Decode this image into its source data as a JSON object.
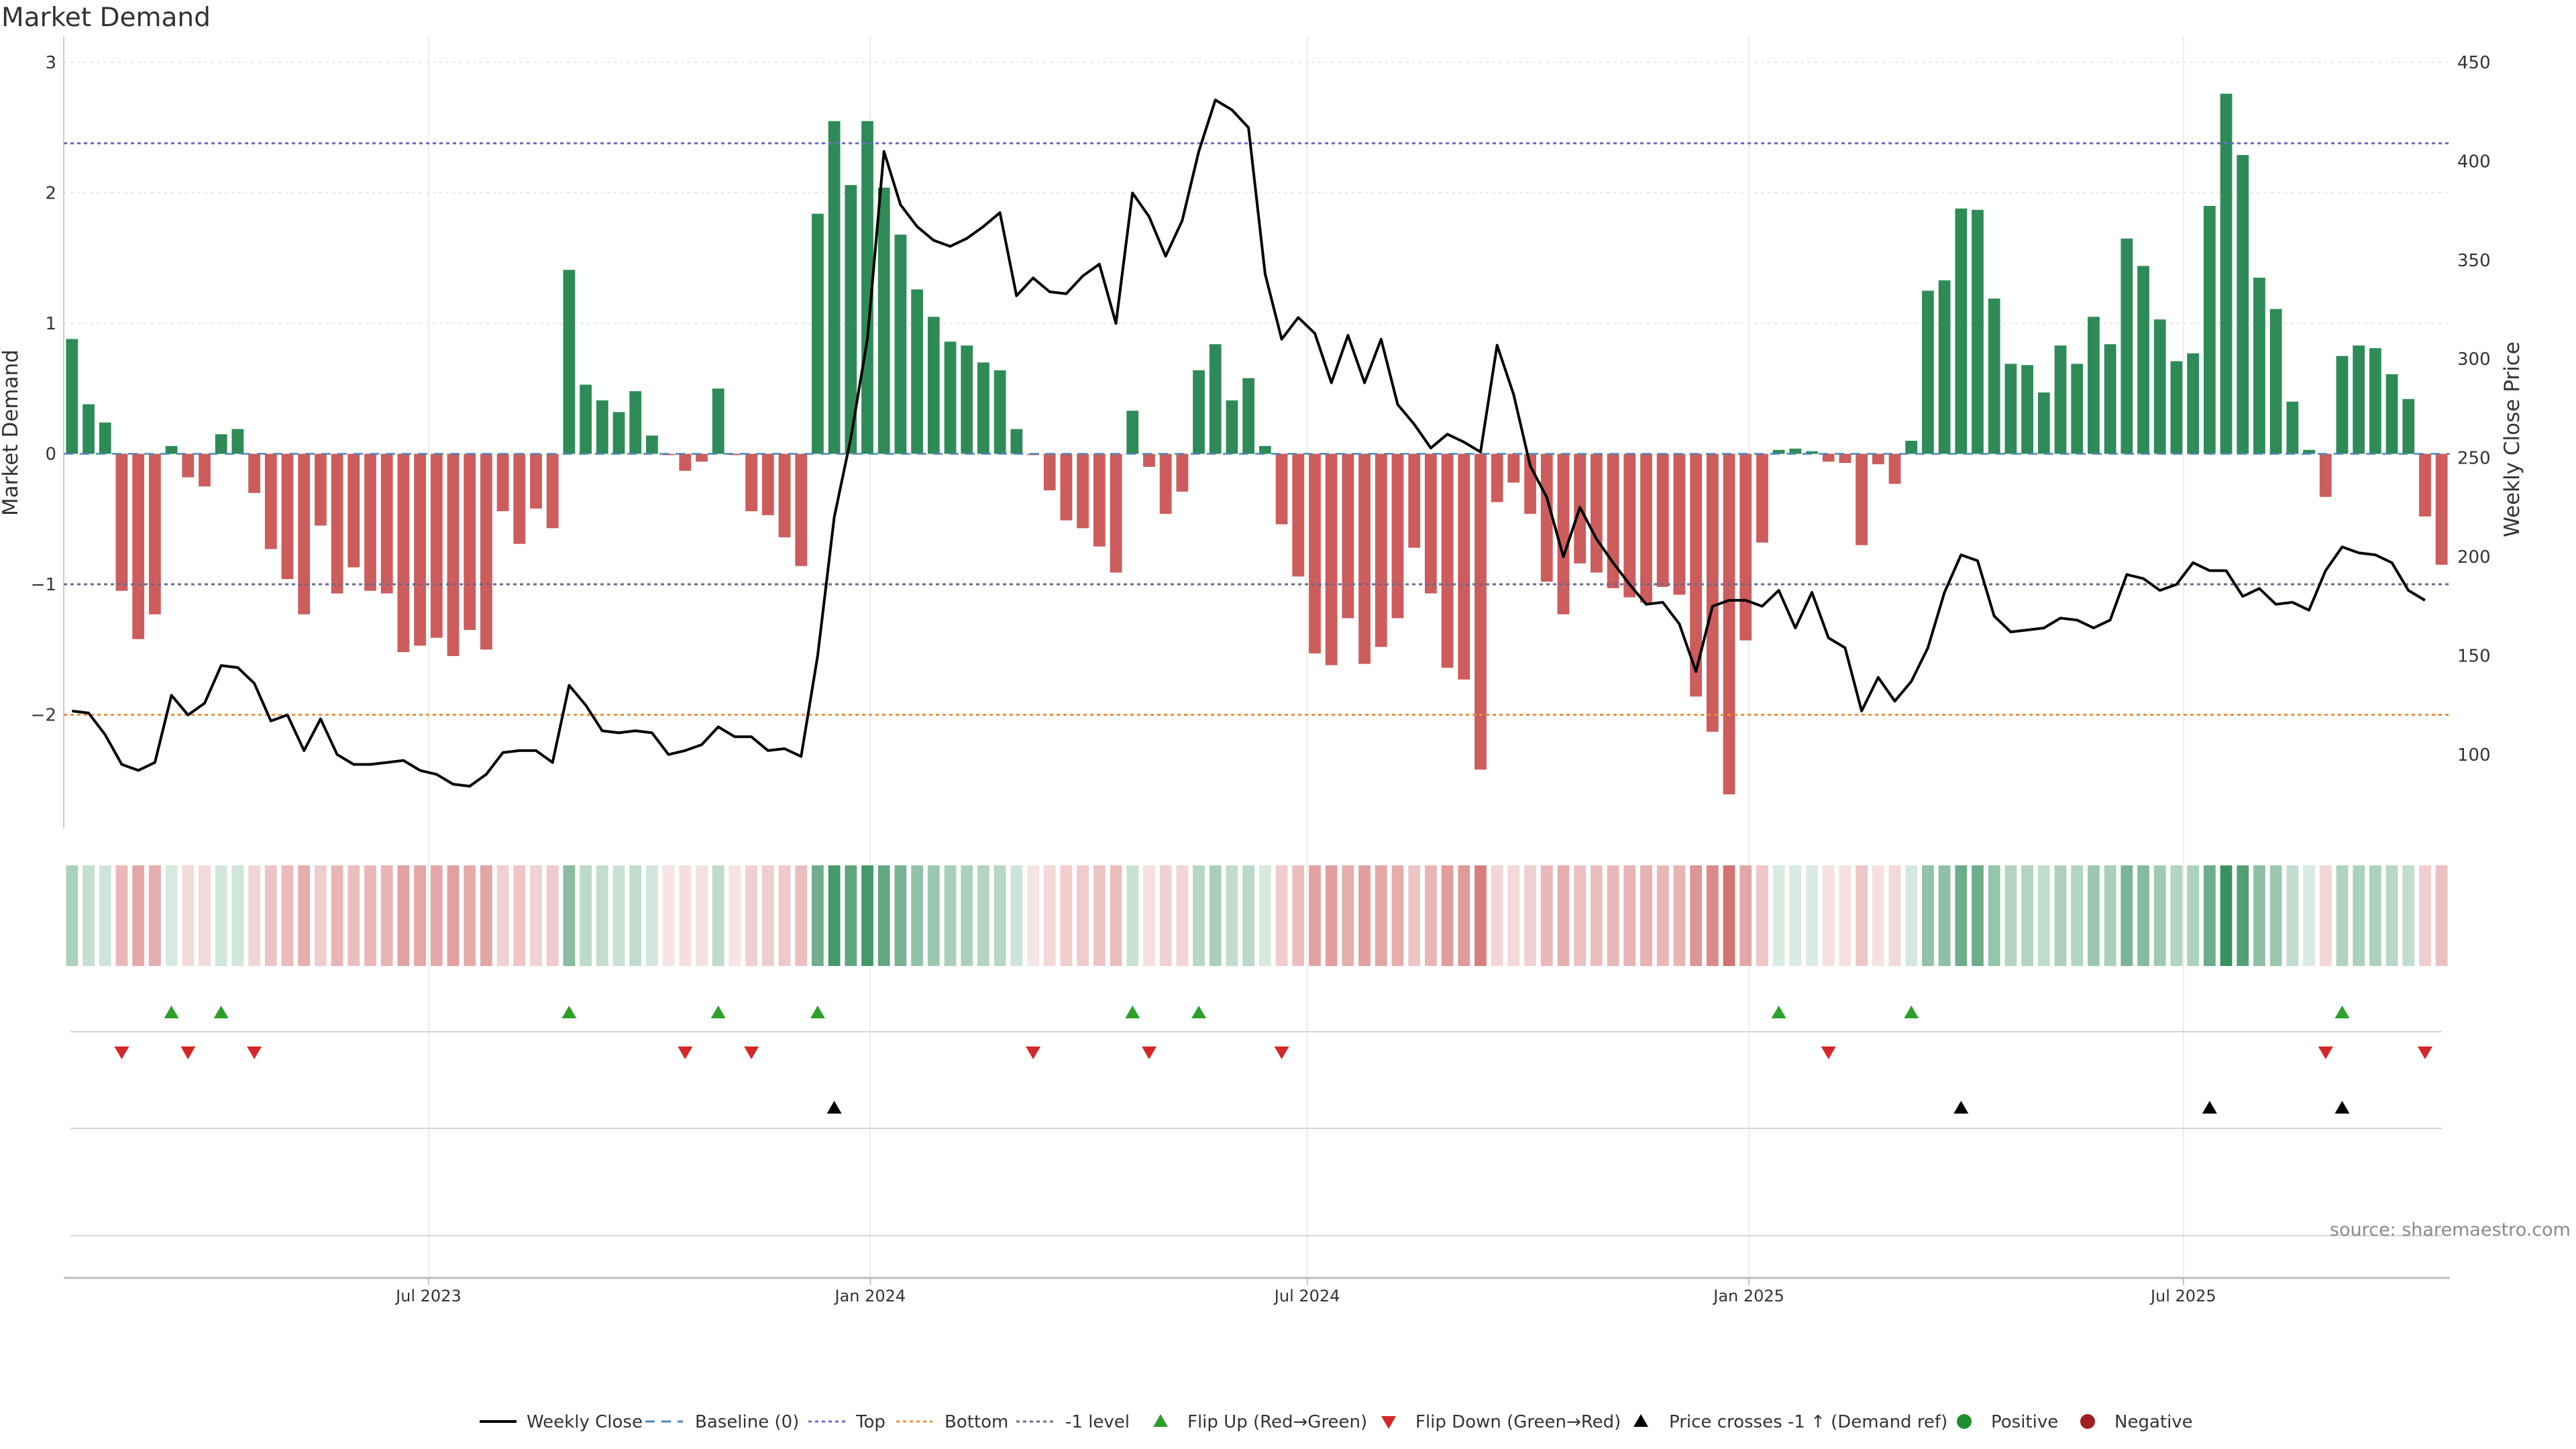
{
  "title": "Market Demand",
  "source": "source: sharemaestro.com",
  "legend": {
    "weekly_close": "Weekly Close",
    "baseline": "Baseline (0)",
    "top": "Top",
    "bottom": "Bottom",
    "minus1": "-1 level",
    "flip_up": "Flip Up (Red→Green)",
    "flip_down": "Flip Down (Green→Red)",
    "price_cross": "Price crosses -1 ↑ (Demand ref)",
    "positive": "Positive",
    "negative": "Negative"
  },
  "colors": {
    "positive": "#2e8b57",
    "negative": "#cd5c5c",
    "price": "#000000",
    "top": "#6a6ad0",
    "bottom": "#e8923a",
    "minus1": "#6a6a8a",
    "baseline": "#4a86b8",
    "flip_up": "#2ca02c",
    "flip_down": "#d62728",
    "cross": "#000000",
    "positive_dot": "#1e8f2e",
    "negative_dot": "#a01e1e"
  },
  "chart_data": {
    "type": "bar",
    "title": "Market Demand",
    "ylabel": "Market Demand",
    "ylabel_right": "Weekly Close Price",
    "ylim": [
      -2.8,
      3.0
    ],
    "ylim_right": [
      60,
      450
    ],
    "yticks": [
      -2,
      -1,
      0,
      1,
      2,
      3
    ],
    "yticks_right": [
      100,
      150,
      200,
      250,
      300,
      350,
      400,
      450
    ],
    "top_level": 2.38,
    "bottom_level": -2.0,
    "minus1_level": -1.0,
    "x_start": "2023-01-30",
    "x_end": "2025-10-20",
    "xtick_labels": [
      "Jul 2023",
      "Jan 2024",
      "Jul 2024",
      "Jan 2025",
      "Jul 2025"
    ],
    "xtick_dates": [
      "2023-07-01",
      "2024-01-01",
      "2024-07-01",
      "2025-01-01",
      "2025-07-01"
    ],
    "grid": true,
    "legend_position": "bottom",
    "series": [
      {
        "name": "Market Demand",
        "values": [
          0.88,
          0.38,
          0.24,
          -1.05,
          -1.42,
          -1.23,
          0.06,
          -0.18,
          -0.25,
          0.15,
          0.19,
          -0.3,
          -0.73,
          -0.96,
          -1.23,
          -0.55,
          -1.07,
          -0.87,
          -1.05,
          -1.07,
          -1.52,
          -1.47,
          -1.41,
          -1.55,
          -1.35,
          -1.5,
          -0.44,
          -0.69,
          -0.42,
          -0.57,
          1.41,
          0.53,
          0.41,
          0.32,
          0.48,
          0.14,
          -0.01,
          -0.13,
          -0.06,
          0.5,
          -0.01,
          -0.44,
          -0.47,
          -0.64,
          -0.86,
          1.84,
          2.55,
          2.06,
          2.55,
          2.04,
          1.68,
          1.26,
          1.05,
          0.86,
          0.83,
          0.7,
          0.64,
          0.19,
          -0.01,
          -0.28,
          -0.51,
          -0.57,
          -0.71,
          -0.91,
          0.33,
          -0.1,
          -0.46,
          -0.29,
          0.64,
          0.84,
          0.41,
          0.58,
          0.06,
          -0.54,
          -0.94,
          -1.53,
          -1.62,
          -1.26,
          -1.61,
          -1.48,
          -1.26,
          -0.72,
          -1.07,
          -1.64,
          -1.73,
          -2.42,
          -0.37,
          -0.22,
          -0.46,
          -0.98,
          -1.23,
          -0.84,
          -0.91,
          -1.03,
          -1.1,
          -1.14,
          -1.02,
          -1.08,
          -1.86,
          -2.13,
          -2.61,
          -1.43,
          -0.68,
          0.03,
          0.04,
          0.02,
          -0.06,
          -0.07,
          -0.7,
          -0.08,
          -0.23,
          0.1,
          1.25,
          1.33,
          1.88,
          1.87,
          1.19,
          0.69,
          0.68,
          0.47,
          0.83,
          0.69,
          1.05,
          0.84,
          1.65,
          1.44,
          1.03,
          0.71,
          0.77,
          1.9,
          2.76,
          2.29,
          1.35,
          1.11,
          0.4,
          0.03,
          -0.33,
          0.75,
          0.83,
          0.81,
          0.61,
          0.42,
          -0.48,
          -0.85
        ]
      },
      {
        "name": "Weekly Close",
        "axis": "right",
        "values": [
          122,
          121,
          110,
          95,
          92,
          96,
          130,
          120,
          126,
          145,
          144,
          136,
          117,
          120,
          102,
          118,
          100,
          95,
          95,
          96,
          97,
          92,
          90,
          85,
          84,
          90,
          101,
          102,
          102,
          96,
          135,
          125,
          112,
          111,
          112,
          111,
          100,
          102,
          105,
          114,
          109,
          109,
          102,
          103,
          99,
          150,
          220,
          260,
          310,
          405,
          378,
          367,
          360,
          357,
          361,
          367,
          374,
          332,
          341,
          334,
          333,
          342,
          348,
          318,
          384,
          372,
          352,
          370,
          405,
          431,
          426,
          417,
          343,
          310,
          321,
          313,
          288,
          312,
          288,
          310,
          277,
          267,
          255,
          262,
          258,
          253,
          307,
          282,
          246,
          230,
          200,
          225,
          209,
          197,
          186,
          176,
          177,
          166,
          142,
          175,
          178,
          178,
          175,
          183,
          164,
          182,
          159,
          154,
          122,
          139,
          127,
          137,
          154,
          182,
          201,
          198,
          170,
          162,
          163,
          164,
          169,
          168,
          164,
          168,
          191,
          189,
          183,
          186,
          197,
          193,
          193,
          180,
          184,
          176,
          177,
          173,
          193,
          205,
          202,
          201,
          197,
          183,
          178
        ]
      }
    ],
    "flip_up_weeks": [
      6,
      9,
      30,
      39,
      45,
      64,
      68,
      103,
      111,
      137
    ],
    "flip_down_weeks": [
      3,
      7,
      11,
      37,
      41,
      58,
      65,
      73,
      106,
      136,
      142
    ],
    "price_cross_weeks": [
      46,
      114,
      129,
      137
    ],
    "strip_intensity": [
      0.3,
      0.14,
      0.08,
      0.35,
      0.47,
      0.41,
      0.02,
      0.06,
      0.08,
      0.05,
      0.06,
      0.1,
      0.24,
      0.32,
      0.41,
      0.18,
      0.36,
      0.29,
      0.35,
      0.36,
      0.51,
      0.49,
      0.47,
      0.52,
      0.45,
      0.5,
      0.15,
      0.23,
      0.14,
      0.19,
      0.51,
      0.19,
      0.15,
      0.12,
      0.17,
      0.05,
      0,
      0.04,
      0.02,
      0.18,
      0,
      0.15,
      0.16,
      0.21,
      0.29,
      0.67,
      0.92,
      0.75,
      0.92,
      0.74,
      0.61,
      0.46,
      0.38,
      0.31,
      0.3,
      0.25,
      0.23,
      0.07,
      0,
      0.09,
      0.17,
      0.19,
      0.24,
      0.3,
      0.12,
      0.03,
      0.15,
      0.1,
      0.23,
      0.31,
      0.15,
      0.21,
      0.02,
      0.18,
      0.31,
      0.51,
      0.54,
      0.42,
      0.54,
      0.49,
      0.42,
      0.24,
      0.36,
      0.55,
      0.58,
      0.81,
      0.12,
      0.07,
      0.15,
      0.33,
      0.41,
      0.28,
      0.3,
      0.34,
      0.37,
      0.38,
      0.34,
      0.36,
      0.62,
      0.71,
      0.87,
      0.48,
      0.23,
      0.01,
      0.01,
      0.01,
      0.02,
      0.02,
      0.23,
      0.03,
      0.08,
      0.04,
      0.45,
      0.48,
      0.68,
      0.68,
      0.43,
      0.25,
      0.25,
      0.17,
      0.3,
      0.25,
      0.38,
      0.31,
      0.6,
      0.52,
      0.37,
      0.26,
      0.28,
      0.69,
      1.0,
      0.83,
      0.49,
      0.4,
      0.15,
      0.01,
      0.11,
      0.27,
      0.3,
      0.29,
      0.22,
      0.15,
      0.16,
      0.28
    ]
  }
}
